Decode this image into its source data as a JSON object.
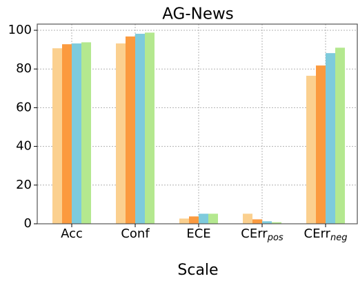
{
  "chart_data": {
    "type": "bar",
    "title": "AG-News",
    "x_label": "Scale",
    "categories": [
      "Acc",
      "Conf",
      "ECE",
      {
        "text": "CErr",
        "sub": "pos"
      },
      {
        "text": "CErr",
        "sub": "neg"
      }
    ],
    "series": [
      {
        "color": "#fbd08f",
        "values": [
          90.7,
          93.2,
          2.7,
          5.2,
          76.5
        ]
      },
      {
        "color": "#fb9a3f",
        "values": [
          92.8,
          96.8,
          3.8,
          2.3,
          81.8
        ]
      },
      {
        "color": "#7ecbdc",
        "values": [
          93.2,
          98.2,
          5.2,
          1.3,
          88.2
        ]
      },
      {
        "color": "#b4e88f",
        "values": [
          93.8,
          98.8,
          5.2,
          0.8,
          91.0
        ]
      }
    ],
    "ylim": [
      0,
      103.2
    ],
    "yticks": [
      0,
      20,
      40,
      60,
      80,
      100
    ],
    "grid": true
  }
}
